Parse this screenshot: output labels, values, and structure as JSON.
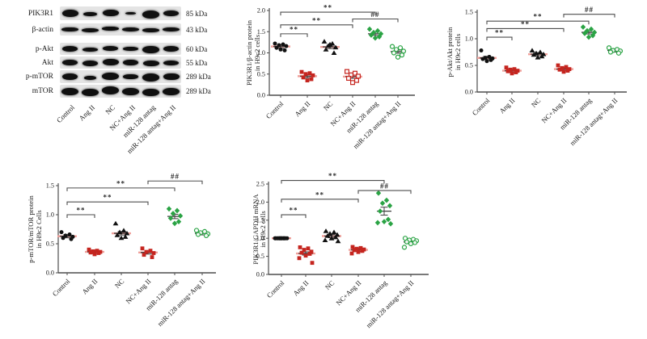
{
  "colors": {
    "black": "#111111",
    "red": "#c5251f",
    "green": "#2aa344",
    "mean_pink": "#f0a09a",
    "mean_dark": "#3d3d3d",
    "axis": "#4d4d4d",
    "blot_strip": "#e4e4e4",
    "band": "#101010"
  },
  "blot": {
    "lanes": [
      "Control",
      "Ang II",
      "NC",
      "NC+Ang II",
      "miR-128 antag",
      "miR-128 antag+Ang II"
    ],
    "rows": [
      {
        "label": "PIK3R1",
        "kda": "85 kDa",
        "bands": [
          [
            0.92,
            9
          ],
          [
            0.78,
            5
          ],
          [
            0.92,
            8
          ],
          [
            0.66,
            3.5
          ],
          [
            0.98,
            10
          ],
          [
            0.9,
            7
          ]
        ]
      },
      {
        "label": "β-actin",
        "kda": "43 kDa",
        "bands": [
          [
            0.95,
            5.5
          ],
          [
            0.95,
            5
          ],
          [
            0.95,
            5.5
          ],
          [
            0.95,
            5
          ],
          [
            0.95,
            5.5
          ],
          [
            0.95,
            5
          ]
        ]
      },
      {
        "label": "p-Akt",
        "kda": "60 kDa",
        "bands": [
          [
            0.9,
            7
          ],
          [
            0.85,
            5
          ],
          [
            0.88,
            6
          ],
          [
            0.85,
            5
          ],
          [
            0.95,
            9
          ],
          [
            0.9,
            7
          ]
        ]
      },
      {
        "label": "Akt",
        "kda": "55 kDa",
        "bands": [
          [
            0.88,
            7
          ],
          [
            0.9,
            7
          ],
          [
            0.92,
            8
          ],
          [
            0.9,
            7.5
          ],
          [
            0.92,
            7
          ],
          [
            0.88,
            6
          ]
        ]
      },
      {
        "label": "p-mTOR",
        "kda": "289 kDa",
        "bands": [
          [
            0.9,
            8
          ],
          [
            0.72,
            5
          ],
          [
            0.95,
            9
          ],
          [
            0.85,
            6.5
          ],
          [
            0.95,
            9.5
          ],
          [
            0.92,
            8.5
          ]
        ]
      },
      {
        "label": "mTOR",
        "kda": "289 kDa",
        "bands": [
          [
            0.96,
            9
          ],
          [
            0.96,
            9
          ],
          [
            0.96,
            9.5
          ],
          [
            0.96,
            9
          ],
          [
            0.96,
            9
          ],
          [
            0.96,
            9
          ]
        ]
      }
    ]
  },
  "chart_data": [
    {
      "id": "pik3r1-actin-protein",
      "type": "scatter",
      "ylabel": [
        "PIK3R1/β-actin protein",
        "in H9c2 cells"
      ],
      "ylim": [
        0,
        2.0
      ],
      "yticks": [
        "0.0",
        "0.5",
        "1.0",
        "1.5",
        "2.0"
      ],
      "categories": [
        "Control",
        "Ang II",
        "NC",
        "NC+Ang II",
        "miR-128 antag",
        "miR-128 antag+Ang II"
      ],
      "groups": [
        {
          "name": "Control",
          "marker": "circle",
          "color": "black",
          "mean": 1.15,
          "sem": 0.03,
          "values": [
            1.22,
            1.2,
            1.18,
            1.16,
            1.12,
            1.06,
            1.08
          ]
        },
        {
          "name": "Ang II",
          "marker": "square",
          "color": "red",
          "mean": 0.45,
          "sem": 0.03,
          "values": [
            0.55,
            0.52,
            0.5,
            0.47,
            0.42,
            0.38,
            0.35
          ]
        },
        {
          "name": "NC",
          "marker": "triangle",
          "color": "black",
          "mean": 1.14,
          "sem": 0.04,
          "values": [
            1.27,
            1.22,
            1.17,
            1.13,
            1.08,
            1.0,
            1.2
          ]
        },
        {
          "name": "NC+Ang II",
          "marker": "square-open",
          "color": "red",
          "mean": 0.44,
          "sem": 0.04,
          "values": [
            0.56,
            0.52,
            0.48,
            0.45,
            0.4,
            0.35,
            0.3
          ]
        },
        {
          "name": "miR-128 antag",
          "marker": "diamond",
          "color": "green",
          "mean": 1.45,
          "sem": 0.03,
          "values": [
            1.56,
            1.52,
            1.48,
            1.45,
            1.42,
            1.38,
            1.35
          ]
        },
        {
          "name": "miR-128 antag+Ang II",
          "marker": "circle-open",
          "color": "green",
          "mean": 1.03,
          "sem": 0.035,
          "values": [
            1.15,
            1.12,
            1.08,
            1.04,
            1.0,
            0.95,
            0.9
          ]
        }
      ],
      "brackets": [
        {
          "from": 0,
          "to": 1,
          "y": 1.45,
          "label": "**"
        },
        {
          "from": 0,
          "to": 3,
          "y": 1.66,
          "label": "**"
        },
        {
          "from": 3,
          "to": 5,
          "y": 1.8,
          "label": "##"
        },
        {
          "from": 0,
          "to": 4,
          "y": 1.96,
          "label": "**"
        }
      ]
    },
    {
      "id": "p-akt-akt-protein",
      "type": "scatter",
      "ylabel": [
        "p-Akt/Akt protein",
        "in H9c2 cells"
      ],
      "ylim": [
        0,
        1.5
      ],
      "yticks": [
        "0.0",
        "0.5",
        "1.0",
        "1.5"
      ],
      "categories": [
        "Control",
        "Ang II",
        "NC",
        "NC+Ang II",
        "miR-128 antag",
        "miR-128 antag+Ang II"
      ],
      "groups": [
        {
          "name": "Control",
          "marker": "circle",
          "color": "black",
          "mean": 0.64,
          "sem": 0.025,
          "values": [
            0.78,
            0.66,
            0.64,
            0.63,
            0.62,
            0.6,
            0.58
          ]
        },
        {
          "name": "Ang II",
          "marker": "square",
          "color": "red",
          "mean": 0.4,
          "sem": 0.015,
          "values": [
            0.46,
            0.43,
            0.42,
            0.4,
            0.39,
            0.37,
            0.35
          ]
        },
        {
          "name": "NC",
          "marker": "triangle",
          "color": "black",
          "mean": 0.71,
          "sem": 0.02,
          "values": [
            0.78,
            0.75,
            0.73,
            0.71,
            0.7,
            0.67,
            0.65
          ]
        },
        {
          "name": "NC+Ang II",
          "marker": "square",
          "color": "red",
          "mean": 0.43,
          "sem": 0.015,
          "values": [
            0.5,
            0.47,
            0.45,
            0.43,
            0.42,
            0.4,
            0.38
          ]
        },
        {
          "name": "miR-128 antag",
          "marker": "diamond",
          "color": "green",
          "mean": 1.12,
          "sem": 0.025,
          "values": [
            1.22,
            1.18,
            1.15,
            1.12,
            1.1,
            1.06,
            1.03
          ]
        },
        {
          "name": "miR-128 antag+Ang II",
          "marker": "circle-open",
          "color": "green",
          "mean": 0.78,
          "sem": 0.015,
          "values": [
            0.83,
            0.8,
            0.78,
            0.77,
            0.75,
            0.73
          ]
        }
      ],
      "brackets": [
        {
          "from": 0,
          "to": 1,
          "y": 1.03,
          "label": "**"
        },
        {
          "from": 0,
          "to": 3,
          "y": 1.19,
          "label": "**"
        },
        {
          "from": 0,
          "to": 4,
          "y": 1.33,
          "label": "**"
        },
        {
          "from": 3,
          "to": 5,
          "y": 1.46,
          "label": "##"
        }
      ]
    },
    {
      "id": "p-mtor-mtor-protein",
      "type": "scatter",
      "ylabel": [
        "p-mTOR/mTOR protein",
        "in H9c2 Cells"
      ],
      "ylim": [
        0,
        1.5
      ],
      "yticks": [
        "0.0",
        "0.5",
        "1.0",
        "1.5"
      ],
      "categories": [
        "Control",
        "Ang II",
        "NC",
        "NC+Ang II",
        "miR-128 antag",
        "miR-128 antag+Ang II"
      ],
      "groups": [
        {
          "name": "Control",
          "marker": "circle",
          "color": "black",
          "mean": 0.63,
          "sem": 0.018,
          "values": [
            0.7,
            0.66,
            0.64,
            0.62,
            0.6,
            0.58
          ]
        },
        {
          "name": "Ang II",
          "marker": "square",
          "color": "red",
          "mean": 0.36,
          "sem": 0.012,
          "values": [
            0.4,
            0.38,
            0.37,
            0.36,
            0.35,
            0.34,
            0.32
          ]
        },
        {
          "name": "NC",
          "marker": "triangle",
          "color": "black",
          "mean": 0.68,
          "sem": 0.03,
          "values": [
            0.85,
            0.73,
            0.7,
            0.68,
            0.65,
            0.62,
            0.6
          ]
        },
        {
          "name": "NC+Ang II",
          "marker": "square",
          "color": "red",
          "mean": 0.35,
          "sem": 0.022,
          "values": [
            0.42,
            0.38,
            0.36,
            0.34,
            0.31,
            0.27
          ]
        },
        {
          "name": "miR-128 antag",
          "marker": "diamond",
          "color": "green",
          "mean": 0.97,
          "sem": 0.038,
          "values": [
            1.1,
            1.07,
            1.02,
            0.98,
            0.94,
            0.88,
            0.85
          ]
        },
        {
          "name": "miR-128 antag+Ang II",
          "marker": "circle-open",
          "color": "green",
          "mean": 0.68,
          "sem": 0.014,
          "values": [
            0.73,
            0.71,
            0.69,
            0.67,
            0.66,
            0.64
          ]
        }
      ],
      "brackets": [
        {
          "from": 0,
          "to": 1,
          "y": 1.0,
          "label": "**"
        },
        {
          "from": 0,
          "to": 3,
          "y": 1.22,
          "label": "**"
        },
        {
          "from": 0,
          "to": 4,
          "y": 1.46,
          "label": "**"
        },
        {
          "from": 3,
          "to": 5,
          "y": 1.58,
          "label": "##"
        }
      ]
    },
    {
      "id": "pik3r1-gapdh-mrna",
      "type": "scatter",
      "ylabel": [
        "PIK3R1/GAPDH mRNA",
        "in H9c2 cells"
      ],
      "ylim": [
        0,
        2.5
      ],
      "yticks": [
        "0.0",
        "0.5",
        "1.0",
        "1.5",
        "2.0",
        "2.5"
      ],
      "categories": [
        "Control",
        "Ang II",
        "NC",
        "NC+Ang II",
        "miR-128 antag",
        "miR-128 antag+Ang II"
      ],
      "groups": [
        {
          "name": "Control",
          "marker": "circle",
          "color": "black",
          "mean": 1.0,
          "sem": 0.005,
          "values": [
            1.0,
            1.0,
            1.0,
            1.0,
            1.0,
            1.0,
            1.0,
            1.0
          ]
        },
        {
          "name": "Ang II",
          "marker": "square",
          "color": "red",
          "mean": 0.58,
          "sem": 0.045,
          "values": [
            0.75,
            0.72,
            0.68,
            0.63,
            0.6,
            0.57,
            0.52,
            0.45,
            0.32
          ]
        },
        {
          "name": "NC",
          "marker": "triangle",
          "color": "black",
          "mean": 1.06,
          "sem": 0.033,
          "values": [
            1.2,
            1.17,
            1.13,
            1.1,
            1.07,
            1.03,
            1.0,
            0.95,
            0.92
          ]
        },
        {
          "name": "NC+Ang II",
          "marker": "square",
          "color": "red",
          "mean": 0.68,
          "sem": 0.02,
          "values": [
            0.76,
            0.73,
            0.71,
            0.69,
            0.67,
            0.65,
            0.62,
            0.58
          ]
        },
        {
          "name": "miR-128 antag",
          "marker": "diamond",
          "color": "green",
          "mean": 1.75,
          "sem": 0.11,
          "values": [
            2.25,
            2.05,
            1.97,
            1.9,
            1.75,
            1.52,
            1.46,
            1.43,
            1.4
          ]
        },
        {
          "name": "miR-128 antag+Ang II",
          "marker": "circle-open",
          "color": "green",
          "mean": 0.9,
          "sem": 0.028,
          "values": [
            1.0,
            0.97,
            0.95,
            0.93,
            0.9,
            0.88,
            0.85,
            0.75
          ]
        }
      ],
      "brackets": [
        {
          "from": 0,
          "to": 1,
          "y": 1.65,
          "label": "**"
        },
        {
          "from": 0,
          "to": 3,
          "y": 2.08,
          "label": "**"
        },
        {
          "from": 3,
          "to": 5,
          "y": 2.32,
          "label": "##"
        },
        {
          "from": 0,
          "to": 4,
          "y": 2.6,
          "label": "**"
        }
      ]
    }
  ]
}
